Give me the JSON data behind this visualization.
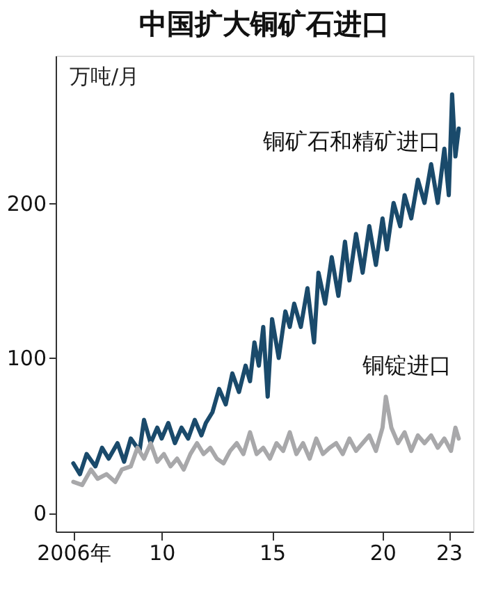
{
  "chart_data": {
    "type": "line",
    "title": "中国扩大铜矿石进口",
    "ylabel": "万吨/月",
    "xlim": [
      2005.2,
      2024.1
    ],
    "xticks": [
      {
        "value": 2006,
        "label": "2006年"
      },
      {
        "value": 2010,
        "label": "10"
      },
      {
        "value": 2015,
        "label": "15"
      },
      {
        "value": 2020,
        "label": "20"
      },
      {
        "value": 2023,
        "label": "23"
      }
    ],
    "ylim": [
      -12,
      295
    ],
    "yticks": [
      0,
      100,
      200
    ],
    "grid": false,
    "marker": "none",
    "line_style": "solid",
    "series": [
      {
        "name": "铜矿石和精矿进口",
        "color": "#1a4a6b",
        "x": [
          2006.0,
          2006.3,
          2006.6,
          2007.0,
          2007.3,
          2007.6,
          2008.0,
          2008.3,
          2008.6,
          2009.0,
          2009.2,
          2009.5,
          2009.8,
          2010.0,
          2010.3,
          2010.6,
          2010.9,
          2011.2,
          2011.5,
          2011.8,
          2012.0,
          2012.3,
          2012.6,
          2012.9,
          2013.2,
          2013.5,
          2013.8,
          2014.0,
          2014.2,
          2014.4,
          2014.6,
          2014.8,
          2015.0,
          2015.3,
          2015.6,
          2015.8,
          2016.0,
          2016.3,
          2016.6,
          2016.9,
          2017.1,
          2017.4,
          2017.7,
          2018.0,
          2018.3,
          2018.5,
          2018.8,
          2019.1,
          2019.4,
          2019.7,
          2020.0,
          2020.2,
          2020.5,
          2020.8,
          2021.0,
          2021.3,
          2021.6,
          2021.9,
          2022.2,
          2022.5,
          2022.8,
          2023.0,
          2023.15,
          2023.3,
          2023.45
        ],
        "values": [
          32,
          25,
          38,
          30,
          42,
          35,
          45,
          33,
          48,
          40,
          60,
          45,
          55,
          48,
          58,
          45,
          55,
          48,
          60,
          50,
          58,
          65,
          80,
          70,
          90,
          78,
          95,
          85,
          110,
          95,
          120,
          75,
          125,
          100,
          130,
          120,
          135,
          120,
          145,
          110,
          155,
          135,
          165,
          140,
          175,
          150,
          180,
          155,
          185,
          160,
          190,
          170,
          200,
          185,
          205,
          190,
          215,
          200,
          225,
          200,
          235,
          205,
          270,
          230,
          248
        ]
      },
      {
        "name": "铜锭进口",
        "color": "#a8a8aa",
        "x": [
          2006.0,
          2006.4,
          2006.8,
          2007.1,
          2007.5,
          2007.9,
          2008.2,
          2008.6,
          2008.9,
          2009.2,
          2009.5,
          2009.8,
          2010.1,
          2010.4,
          2010.7,
          2011.0,
          2011.3,
          2011.6,
          2011.9,
          2012.2,
          2012.5,
          2012.8,
          2013.1,
          2013.4,
          2013.7,
          2014.0,
          2014.3,
          2014.6,
          2014.9,
          2015.2,
          2015.5,
          2015.8,
          2016.1,
          2016.4,
          2016.7,
          2017.0,
          2017.3,
          2017.6,
          2017.9,
          2018.2,
          2018.5,
          2018.8,
          2019.1,
          2019.4,
          2019.7,
          2020.0,
          2020.15,
          2020.4,
          2020.7,
          2021.0,
          2021.3,
          2021.6,
          2021.9,
          2022.2,
          2022.5,
          2022.8,
          2023.1,
          2023.3,
          2023.45
        ],
        "values": [
          20,
          18,
          28,
          22,
          25,
          20,
          28,
          30,
          42,
          35,
          45,
          33,
          38,
          30,
          35,
          28,
          38,
          45,
          38,
          42,
          35,
          32,
          40,
          45,
          38,
          52,
          38,
          42,
          35,
          45,
          40,
          52,
          38,
          45,
          35,
          48,
          38,
          42,
          45,
          38,
          48,
          40,
          45,
          50,
          40,
          55,
          75,
          55,
          45,
          52,
          40,
          50,
          45,
          50,
          42,
          48,
          40,
          55,
          48
        ]
      }
    ]
  }
}
